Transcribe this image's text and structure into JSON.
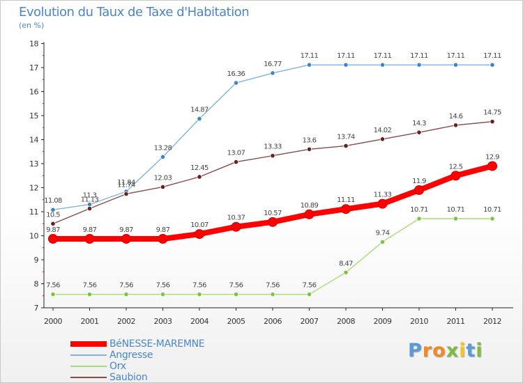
{
  "header": {
    "title": "Evolution du Taux de Taxe d'Habitation",
    "subtitle": "(en %)"
  },
  "brand": {
    "letters": [
      "P",
      "r",
      "o",
      "x",
      "i",
      "t",
      "i"
    ],
    "colors": [
      "#5b9bd5",
      "#f08a24",
      "#f08a24",
      "#7dbb42",
      "#f3c623",
      "#5b9bd5",
      "#7dbb42"
    ]
  },
  "chart_data": {
    "type": "line",
    "title": "Evolution du Taux de Taxe d'Habitation",
    "subtitle": "(en %)",
    "xlabel": "",
    "ylabel": "",
    "x": [
      "2000",
      "2001",
      "2002",
      "2003",
      "2004",
      "2005",
      "2006",
      "2007",
      "2008",
      "2009",
      "2010",
      "2011",
      "2012"
    ],
    "ylim": [
      7,
      18
    ],
    "yticks": [
      "7",
      "8",
      "9",
      "10",
      "11",
      "12",
      "13",
      "14",
      "15",
      "16",
      "17",
      "18"
    ],
    "grid": false,
    "legend_position": "bottom-left",
    "series": [
      {
        "name": "BéNESSE-MAREMNE",
        "color": "#ff0000",
        "marker_color": "#ff0000",
        "width": "thick",
        "values": [
          9.87,
          9.87,
          9.87,
          9.87,
          10.07,
          10.37,
          10.57,
          10.89,
          11.11,
          11.33,
          11.9,
          12.5,
          12.9
        ],
        "labels": [
          "9.87",
          "9.87",
          "9.87",
          "9.87",
          "10.07",
          "10.37",
          "10.57",
          "10.89",
          "11.11",
          "11.33",
          "11.9",
          "12.5",
          "12.9"
        ]
      },
      {
        "name": "Angresse",
        "color": "#7fb2e0",
        "marker_color": "#3d85c6",
        "width": "thin",
        "values": [
          11.08,
          11.3,
          11.84,
          13.28,
          14.87,
          16.36,
          16.77,
          17.11,
          17.11,
          17.11,
          17.11,
          17.11,
          17.11
        ],
        "labels": [
          "11.08",
          "11.3",
          "11.84",
          "13.28",
          "14.87",
          "16.36",
          "16.77",
          "17.11",
          "17.11",
          "17.11",
          "17.11",
          "17.11",
          "17.11"
        ]
      },
      {
        "name": "Orx",
        "color": "#a8dc78",
        "marker_color": "#7dc242",
        "width": "thin",
        "values": [
          7.56,
          7.56,
          7.56,
          7.56,
          7.56,
          7.56,
          7.56,
          7.56,
          8.47,
          9.74,
          10.71,
          10.71,
          10.71
        ],
        "labels": [
          "7.56",
          "7.56",
          "7.56",
          "7.56",
          "7.56",
          "7.56",
          "7.56",
          "7.56",
          "8.47",
          "9.74",
          "10.71",
          "10.71",
          "10.71"
        ]
      },
      {
        "name": "Saubion",
        "color": "#8b4a4a",
        "marker_color": "#6b1e1e",
        "width": "thin",
        "values": [
          10.5,
          11.13,
          11.74,
          12.03,
          12.45,
          13.07,
          13.33,
          13.6,
          13.74,
          14.02,
          14.3,
          14.6,
          14.75
        ],
        "labels": [
          "10.5",
          "11.13",
          "11.74",
          "12.03",
          "12.45",
          "13.07",
          "13.33",
          "13.6",
          "13.74",
          "14.02",
          "14.3",
          "14.6",
          "14.75"
        ]
      }
    ]
  }
}
